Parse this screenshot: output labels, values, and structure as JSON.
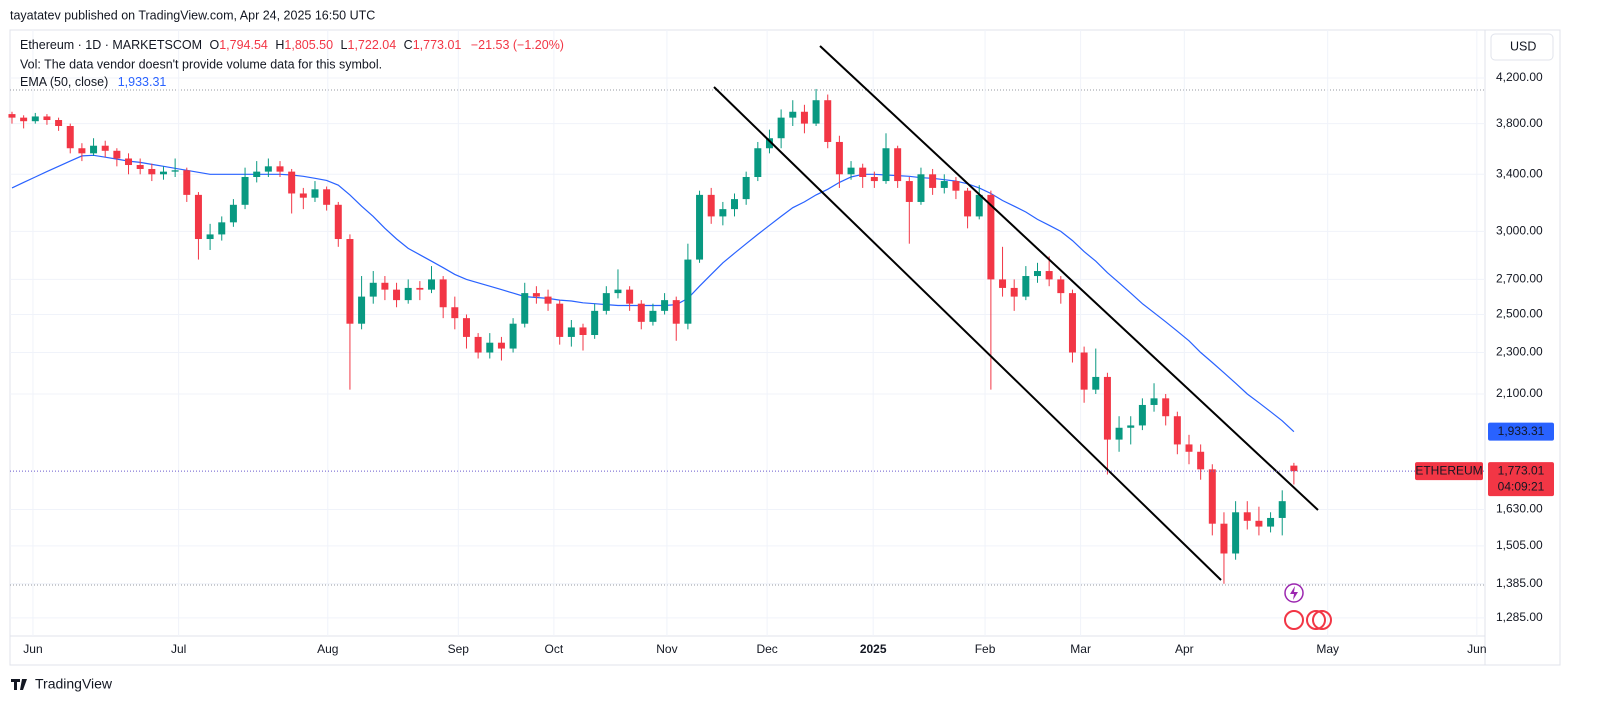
{
  "header": {
    "published": "tayatatev published on TradingView.com, Apr 24, 2025 16:50 UTC"
  },
  "chart_data": {
    "type": "candlestick",
    "legend": {
      "symbol": "Ethereum · 1D · MARKETSCOM",
      "o": "O",
      "open": "1,794.54",
      "h": "H",
      "high": "1,805.50",
      "l": "L",
      "low": "1,722.04",
      "c": "C",
      "close": "1,773.01",
      "change": "−21.53 (−1.20%)",
      "volume_note": "Vol: The data vendor doesn't provide volume data for this symbol."
    },
    "currency": "USD",
    "log_scale": true,
    "grid": true,
    "up_color": "#089981",
    "down_color": "#f23645",
    "ohlc": [
      [
        3880,
        3900,
        3800,
        3850
      ],
      [
        3850,
        3870,
        3760,
        3820
      ],
      [
        3820,
        3890,
        3800,
        3860
      ],
      [
        3860,
        3880,
        3790,
        3830
      ],
      [
        3830,
        3850,
        3740,
        3780
      ],
      [
        3780,
        3800,
        3560,
        3600
      ],
      [
        3600,
        3640,
        3500,
        3560
      ],
      [
        3560,
        3680,
        3540,
        3620
      ],
      [
        3620,
        3660,
        3530,
        3580
      ],
      [
        3580,
        3600,
        3460,
        3520
      ],
      [
        3520,
        3560,
        3400,
        3470
      ],
      [
        3470,
        3520,
        3400,
        3440
      ],
      [
        3440,
        3480,
        3350,
        3400
      ],
      [
        3400,
        3460,
        3360,
        3420
      ],
      [
        3420,
        3520,
        3380,
        3430
      ],
      [
        3430,
        3450,
        3200,
        3250
      ],
      [
        3250,
        3270,
        2820,
        2950
      ],
      [
        2950,
        3050,
        2880,
        2980
      ],
      [
        2980,
        3100,
        2940,
        3060
      ],
      [
        3060,
        3220,
        3030,
        3180
      ],
      [
        3180,
        3450,
        3150,
        3380
      ],
      [
        3380,
        3500,
        3340,
        3420
      ],
      [
        3420,
        3520,
        3380,
        3460
      ],
      [
        3460,
        3500,
        3380,
        3420
      ],
      [
        3420,
        3440,
        3120,
        3260
      ],
      [
        3260,
        3300,
        3150,
        3230
      ],
      [
        3230,
        3350,
        3200,
        3290
      ],
      [
        3290,
        3310,
        3140,
        3180
      ],
      [
        3180,
        3200,
        2900,
        2950
      ],
      [
        2950,
        2980,
        2120,
        2450
      ],
      [
        2450,
        2720,
        2420,
        2600
      ],
      [
        2600,
        2750,
        2560,
        2680
      ],
      [
        2680,
        2720,
        2580,
        2640
      ],
      [
        2640,
        2680,
        2540,
        2580
      ],
      [
        2580,
        2700,
        2560,
        2650
      ],
      [
        2650,
        2690,
        2580,
        2640
      ],
      [
        2640,
        2780,
        2620,
        2700
      ],
      [
        2700,
        2720,
        2480,
        2540
      ],
      [
        2540,
        2600,
        2420,
        2480
      ],
      [
        2480,
        2500,
        2320,
        2380
      ],
      [
        2380,
        2400,
        2270,
        2300
      ],
      [
        2300,
        2400,
        2270,
        2350
      ],
      [
        2350,
        2380,
        2260,
        2320
      ],
      [
        2320,
        2480,
        2300,
        2450
      ],
      [
        2450,
        2680,
        2430,
        2620
      ],
      [
        2620,
        2660,
        2560,
        2600
      ],
      [
        2600,
        2640,
        2520,
        2560
      ],
      [
        2560,
        2580,
        2340,
        2380
      ],
      [
        2380,
        2470,
        2330,
        2430
      ],
      [
        2430,
        2450,
        2310,
        2390
      ],
      [
        2390,
        2560,
        2370,
        2520
      ],
      [
        2520,
        2660,
        2500,
        2620
      ],
      [
        2620,
        2760,
        2590,
        2640
      ],
      [
        2640,
        2660,
        2520,
        2560
      ],
      [
        2560,
        2580,
        2420,
        2460
      ],
      [
        2460,
        2560,
        2440,
        2520
      ],
      [
        2520,
        2620,
        2500,
        2580
      ],
      [
        2580,
        2600,
        2360,
        2450
      ],
      [
        2450,
        2920,
        2420,
        2820
      ],
      [
        2820,
        3280,
        2800,
        3250
      ],
      [
        3250,
        3300,
        3050,
        3100
      ],
      [
        3100,
        3200,
        3040,
        3150
      ],
      [
        3150,
        3260,
        3100,
        3220
      ],
      [
        3220,
        3420,
        3180,
        3380
      ],
      [
        3380,
        3650,
        3350,
        3600
      ],
      [
        3600,
        3750,
        3560,
        3680
      ],
      [
        3680,
        3920,
        3600,
        3850
      ],
      [
        3850,
        4000,
        3780,
        3900
      ],
      [
        3900,
        3960,
        3720,
        3800
      ],
      [
        3800,
        4100,
        3780,
        4000
      ],
      [
        4000,
        4050,
        3600,
        3650
      ],
      [
        3650,
        3700,
        3300,
        3400
      ],
      [
        3400,
        3500,
        3360,
        3450
      ],
      [
        3450,
        3480,
        3300,
        3380
      ],
      [
        3380,
        3420,
        3300,
        3350
      ],
      [
        3350,
        3720,
        3330,
        3600
      ],
      [
        3600,
        3620,
        3300,
        3350
      ],
      [
        3350,
        3380,
        2920,
        3200
      ],
      [
        3200,
        3450,
        3180,
        3400
      ],
      [
        3400,
        3440,
        3250,
        3300
      ],
      [
        3300,
        3400,
        3260,
        3350
      ],
      [
        3350,
        3380,
        3220,
        3280
      ],
      [
        3280,
        3300,
        3020,
        3100
      ],
      [
        3100,
        3320,
        3080,
        3250
      ],
      [
        3250,
        3280,
        2120,
        2700
      ],
      [
        2700,
        2900,
        2600,
        2650
      ],
      [
        2650,
        2700,
        2520,
        2600
      ],
      [
        2600,
        2780,
        2580,
        2720
      ],
      [
        2720,
        2800,
        2680,
        2750
      ],
      [
        2750,
        2840,
        2660,
        2700
      ],
      [
        2700,
        2720,
        2560,
        2620
      ],
      [
        2620,
        2640,
        2250,
        2300
      ],
      [
        2300,
        2330,
        2060,
        2120
      ],
      [
        2120,
        2320,
        2100,
        2180
      ],
      [
        2180,
        2200,
        1760,
        1900
      ],
      [
        1900,
        2000,
        1850,
        1950
      ],
      [
        1950,
        2000,
        1880,
        1960
      ],
      [
        1960,
        2080,
        1940,
        2050
      ],
      [
        2050,
        2150,
        2020,
        2080
      ],
      [
        2080,
        2100,
        1960,
        2000
      ],
      [
        2000,
        2020,
        1840,
        1880
      ],
      [
        1880,
        1920,
        1800,
        1850
      ],
      [
        1850,
        1880,
        1740,
        1780
      ],
      [
        1780,
        1800,
        1540,
        1580
      ],
      [
        1580,
        1620,
        1385,
        1480
      ],
      [
        1480,
        1660,
        1460,
        1620
      ],
      [
        1620,
        1660,
        1560,
        1590
      ],
      [
        1590,
        1640,
        1540,
        1570
      ],
      [
        1570,
        1620,
        1550,
        1600
      ],
      [
        1600,
        1700,
        1540,
        1660
      ],
      [
        1794.54,
        1805.5,
        1722.04,
        1773.01
      ]
    ],
    "ema": {
      "name": "EMA (50, close)",
      "color": "#2962ff",
      "value_label": "1,933.31",
      "values": [
        3300,
        3340,
        3380,
        3420,
        3460,
        3500,
        3540,
        3545,
        3530,
        3515,
        3500,
        3490,
        3475,
        3460,
        3445,
        3430,
        3415,
        3400,
        3400,
        3400,
        3400,
        3400,
        3400,
        3400,
        3395,
        3385,
        3370,
        3355,
        3320,
        3250,
        3170,
        3100,
        3020,
        2950,
        2890,
        2850,
        2810,
        2770,
        2730,
        2700,
        2680,
        2660,
        2640,
        2620,
        2600,
        2595,
        2590,
        2580,
        2575,
        2565,
        2560,
        2555,
        2550,
        2550,
        2550,
        2550,
        2550,
        2555,
        2590,
        2660,
        2730,
        2800,
        2860,
        2920,
        2980,
        3040,
        3100,
        3160,
        3200,
        3250,
        3290,
        3340,
        3380,
        3400,
        3400,
        3395,
        3390,
        3385,
        3375,
        3370,
        3360,
        3350,
        3330,
        3300,
        3260,
        3210,
        3170,
        3130,
        3080,
        3040,
        3000,
        2940,
        2870,
        2810,
        2740,
        2680,
        2620,
        2560,
        2510,
        2460,
        2410,
        2360,
        2300,
        2250,
        2200,
        2150,
        2100,
        2060,
        2020,
        1980,
        1933.31
      ]
    },
    "last_price": {
      "name": "ETHEREUM",
      "label": "1,773.01",
      "countdown": "04:09:21",
      "color": "#f23645"
    },
    "xlim": [
      -0.17,
      126.4
    ],
    "xticks": [
      {
        "value": 1.8,
        "label": "Jun"
      },
      {
        "value": 14.3,
        "label": "Jul"
      },
      {
        "value": 27.1,
        "label": "Aug"
      },
      {
        "value": 38.3,
        "label": "Sep"
      },
      {
        "value": 46.5,
        "label": "Oct"
      },
      {
        "value": 56.2,
        "label": "Nov"
      },
      {
        "value": 64.8,
        "label": "Dec"
      },
      {
        "value": 73.9,
        "label": "2025"
      },
      {
        "value": 83.5,
        "label": "Feb"
      },
      {
        "value": 91.7,
        "label": "Mar"
      },
      {
        "value": 100.6,
        "label": "Apr"
      },
      {
        "value": 112.9,
        "label": "May"
      },
      {
        "value": 125.7,
        "label": "Jun"
      }
    ],
    "ylim": [
      1235,
      4666
    ],
    "yticks": [
      {
        "value": 4200,
        "label": "4,200.00"
      },
      {
        "value": 3800,
        "label": "3,800.00"
      },
      {
        "value": 3400,
        "label": "3,400.00"
      },
      {
        "value": 3000,
        "label": "3,000.00"
      },
      {
        "value": 2700,
        "label": "2,700.00"
      },
      {
        "value": 2500,
        "label": "2,500.00"
      },
      {
        "value": 2300,
        "label": "2,300.00"
      },
      {
        "value": 2100,
        "label": "2,100.00"
      },
      {
        "value": 1630,
        "label": "1,630.00"
      },
      {
        "value": 1505,
        "label": "1,505.00"
      },
      {
        "value": 1385,
        "label": "1,385.00"
      },
      {
        "value": 1285,
        "label": "1,285.00"
      }
    ]
  },
  "footer": {
    "brand": "TradingView"
  }
}
